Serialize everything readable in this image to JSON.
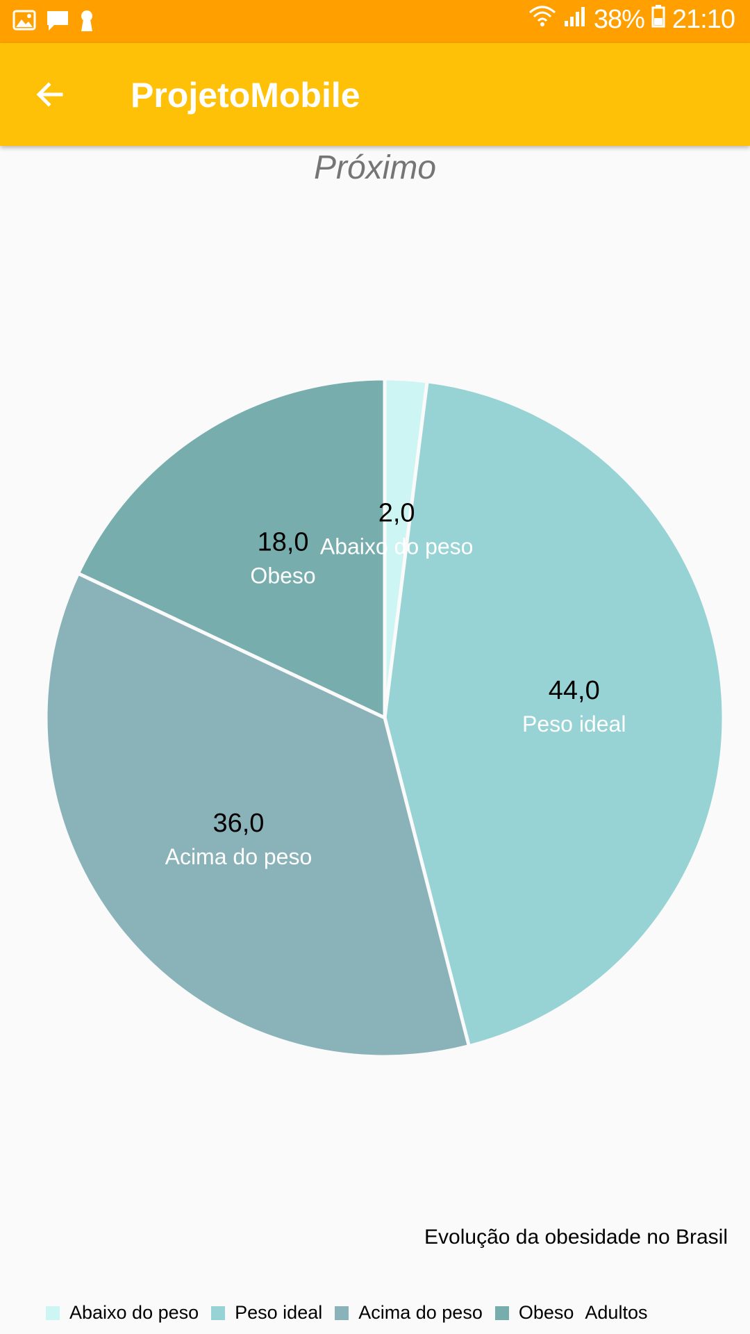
{
  "status_bar": {
    "battery": "38%",
    "time": "21:10",
    "icons": [
      "image-icon",
      "chat-icon",
      "keyhole-icon",
      "wifi-icon",
      "signal-icon",
      "battery-icon"
    ]
  },
  "app_bar": {
    "title": "ProjetoMobile",
    "back_icon": "arrow-back-icon"
  },
  "chart_data": {
    "type": "pie",
    "title": "Próximo",
    "description": "Evolução da obesidade no Brasil",
    "legend_title": "Adultos",
    "legend_position": "bottom-left",
    "slices": [
      {
        "label": "Abaixo do peso",
        "value": 2.0,
        "display": "2,0",
        "color": "#cdf5f3"
      },
      {
        "label": "Peso ideal",
        "value": 44.0,
        "display": "44,0",
        "color": "#97d3d4"
      },
      {
        "label": "Acima do peso",
        "value": 36.0,
        "display": "36,0",
        "color": "#8ab3b9"
      },
      {
        "label": "Obeso",
        "value": 18.0,
        "display": "18,0",
        "color": "#77adad"
      }
    ]
  }
}
